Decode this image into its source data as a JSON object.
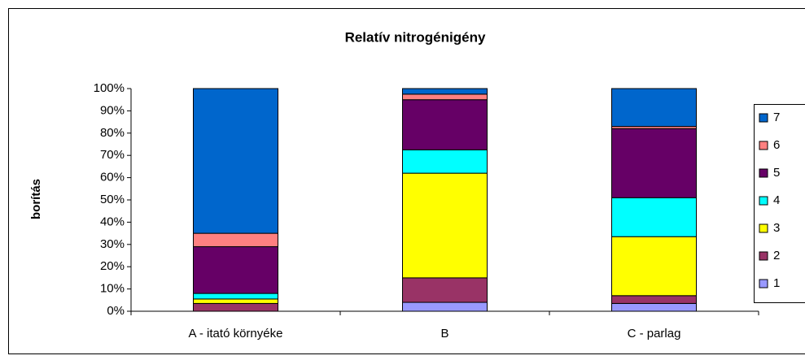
{
  "chart_data": {
    "type": "stacked_bar",
    "title": "Relatív nitrogénigény",
    "ylabel": "borítás",
    "categories": [
      "A - itató környéke",
      "B",
      "C - parlag"
    ],
    "series": [
      {
        "name": "1",
        "color": "#9999ff",
        "values": [
          0,
          4,
          3.5
        ]
      },
      {
        "name": "2",
        "color": "#993366",
        "values": [
          3.5,
          11,
          3.5
        ]
      },
      {
        "name": "3",
        "color": "#ffff00",
        "values": [
          2,
          47,
          26.5
        ]
      },
      {
        "name": "4",
        "color": "#00ffff",
        "values": [
          2.5,
          10.5,
          17.5
        ]
      },
      {
        "name": "5",
        "color": "#660066",
        "values": [
          21,
          22.5,
          31
        ]
      },
      {
        "name": "6",
        "color": "#ff8080",
        "values": [
          6,
          2.5,
          1
        ]
      },
      {
        "name": "7",
        "color": "#0066cc",
        "values": [
          65,
          2.5,
          17
        ]
      }
    ],
    "ylim": [
      0,
      100
    ],
    "yticks": [
      {
        "value": 0,
        "label": "0%"
      },
      {
        "value": 10,
        "label": "10%"
      },
      {
        "value": 20,
        "label": "20%"
      },
      {
        "value": 30,
        "label": "30%"
      },
      {
        "value": 40,
        "label": "40%"
      },
      {
        "value": 50,
        "label": "50%"
      },
      {
        "value": 60,
        "label": "60%"
      },
      {
        "value": 70,
        "label": "70%"
      },
      {
        "value": 80,
        "label": "80%"
      },
      {
        "value": 90,
        "label": "90%"
      },
      {
        "value": 100,
        "label": "100%"
      }
    ],
    "legend": "right"
  }
}
